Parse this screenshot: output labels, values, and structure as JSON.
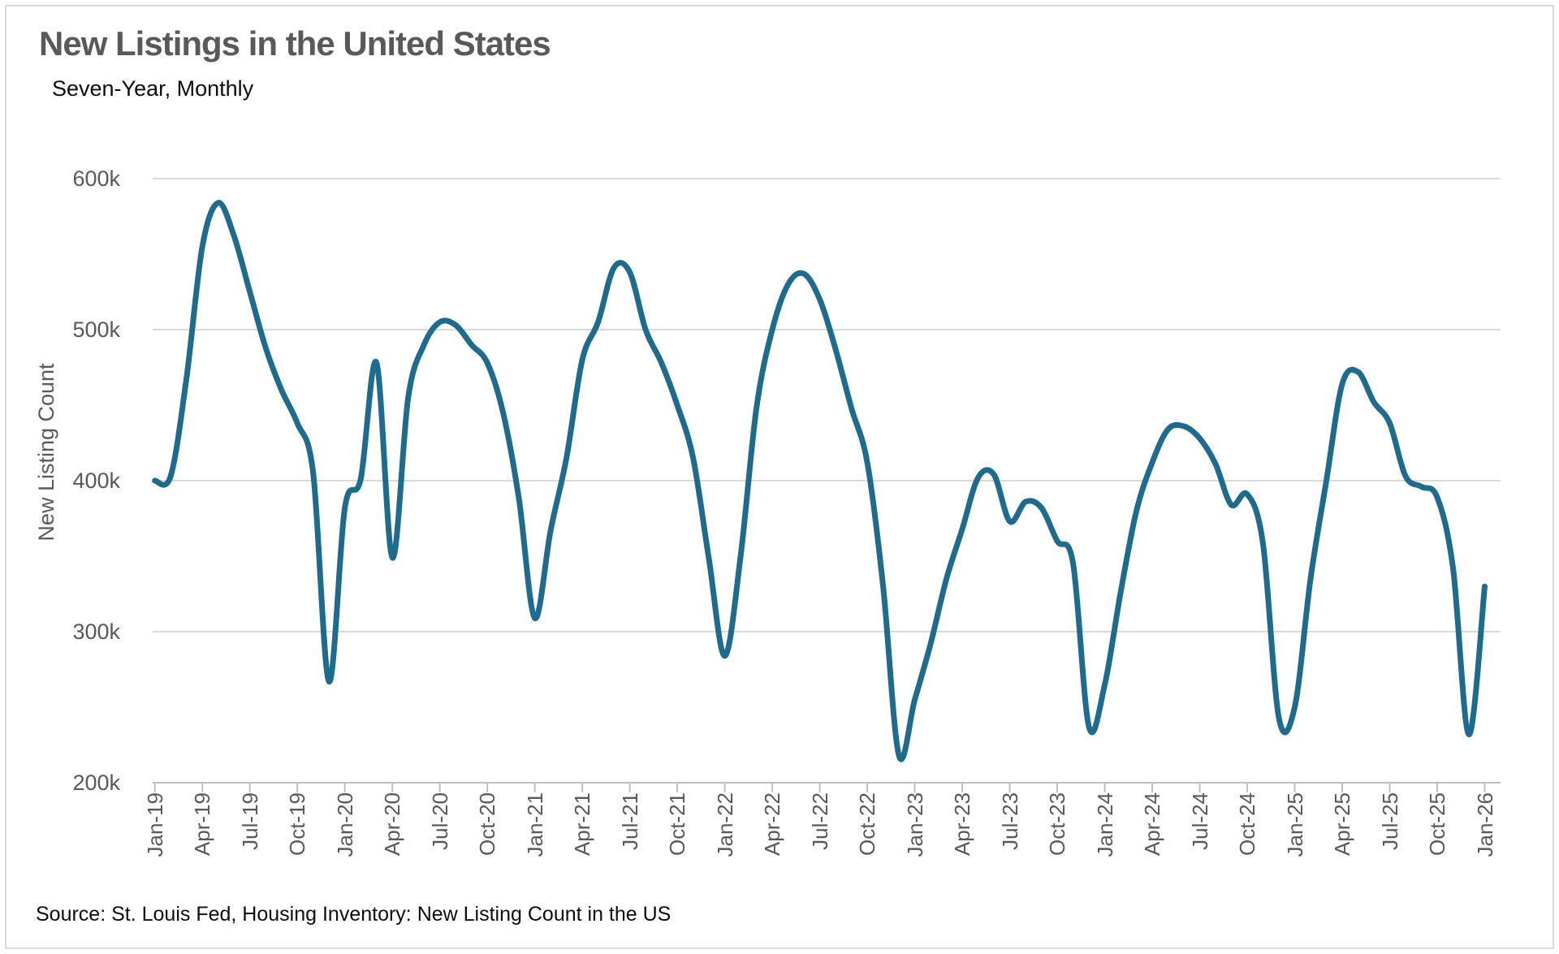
{
  "header": {
    "title": "New Listings in the United States",
    "subtitle": "Seven-Year, Monthly"
  },
  "source_note": "Source: St. Louis Fed, Housing Inventory: New Listing Count in the US",
  "colors": {
    "line": "#1F6B8D",
    "gridline": "#D9D9D9",
    "axis_line": "#BFBFBF",
    "tick_label": "#595959",
    "title_text": "#595959",
    "body_text": "#0D0D0D",
    "border": "#D9D9D9"
  },
  "chart_data": {
    "type": "line",
    "title": "New Listings in the United States",
    "subtitle": "Seven-Year, Monthly",
    "xlabel": "",
    "ylabel": "New Listing Count",
    "values_unit": "thousands",
    "ylim": [
      200,
      600
    ],
    "grid": "horizontal",
    "legend": "none",
    "y_tick_labels": [
      "600k",
      "500k",
      "400k",
      "300k",
      "200k"
    ],
    "y_tick_values": [
      600,
      500,
      400,
      300,
      200
    ],
    "x_tick_labels": [
      "Jan-19",
      "Apr-19",
      "Jul-19",
      "Oct-19",
      "Jan-20",
      "Apr-20",
      "Jul-20",
      "Oct-20",
      "Jan-21",
      "Apr-21",
      "Jul-21",
      "Oct-21",
      "Jan-22",
      "Apr-22",
      "Jul-22",
      "Oct-22",
      "Jan-23",
      "Apr-23",
      "Jul-23",
      "Oct-23",
      "Jan-24",
      "Apr-24",
      "Jul-24",
      "Oct-24",
      "Jan-25",
      "Apr-25",
      "Jul-25",
      "Oct-25",
      "Jan-26"
    ],
    "series": [
      {
        "name": "New Listing Count",
        "months": [
          "Jan-19",
          "Feb-19",
          "Mar-19",
          "Apr-19",
          "May-19",
          "Jun-19",
          "Jul-19",
          "Aug-19",
          "Sep-19",
          "Oct-19",
          "Nov-19",
          "Dec-19",
          "Jan-20",
          "Feb-20",
          "Mar-20",
          "Apr-20",
          "May-20",
          "Jun-20",
          "Jul-20",
          "Aug-20",
          "Sep-20",
          "Oct-20",
          "Nov-20",
          "Dec-20",
          "Jan-21",
          "Feb-21",
          "Mar-21",
          "Apr-21",
          "May-21",
          "Jun-21",
          "Jul-21",
          "Aug-21",
          "Sep-21",
          "Oct-21",
          "Nov-21",
          "Dec-21",
          "Jan-22",
          "Feb-22",
          "Mar-22",
          "Apr-22",
          "May-22",
          "Jun-22",
          "Jul-22",
          "Aug-22",
          "Sep-22",
          "Oct-22",
          "Nov-22",
          "Dec-22",
          "Jan-23",
          "Feb-23",
          "Mar-23",
          "Apr-23",
          "May-23",
          "Jun-23",
          "Jul-23",
          "Aug-23",
          "Sep-23",
          "Oct-23",
          "Nov-23",
          "Dec-23",
          "Jan-24",
          "Feb-24",
          "Mar-24",
          "Apr-24",
          "May-24",
          "Jun-24",
          "Jul-24",
          "Aug-24",
          "Sep-24",
          "Oct-24",
          "Nov-24",
          "Dec-24",
          "Jan-25",
          "Feb-25",
          "Mar-25",
          "Apr-25",
          "May-25",
          "Jun-25",
          "Jul-25",
          "Aug-25",
          "Sep-25",
          "Oct-25",
          "Nov-25",
          "Dec-25",
          "Jan-26"
        ],
        "values": [
          400,
          403,
          468,
          555,
          584,
          562,
          525,
          488,
          460,
          438,
          405,
          267,
          382,
          401,
          478,
          349,
          455,
          490,
          505,
          503,
          490,
          478,
          445,
          388,
          309,
          367,
          415,
          480,
          505,
          541,
          538,
          500,
          478,
          450,
          415,
          348,
          284,
          350,
          448,
          500,
          530,
          537,
          520,
          487,
          448,
          412,
          330,
          218,
          255,
          292,
          335,
          368,
          402,
          404,
          373,
          386,
          382,
          360,
          345,
          237,
          265,
          326,
          380,
          412,
          434,
          436,
          428,
          411,
          384,
          391,
          358,
          243,
          250,
          335,
          400,
          464,
          472,
          452,
          438,
          403,
          396,
          389,
          342,
          232,
          330
        ]
      }
    ]
  }
}
